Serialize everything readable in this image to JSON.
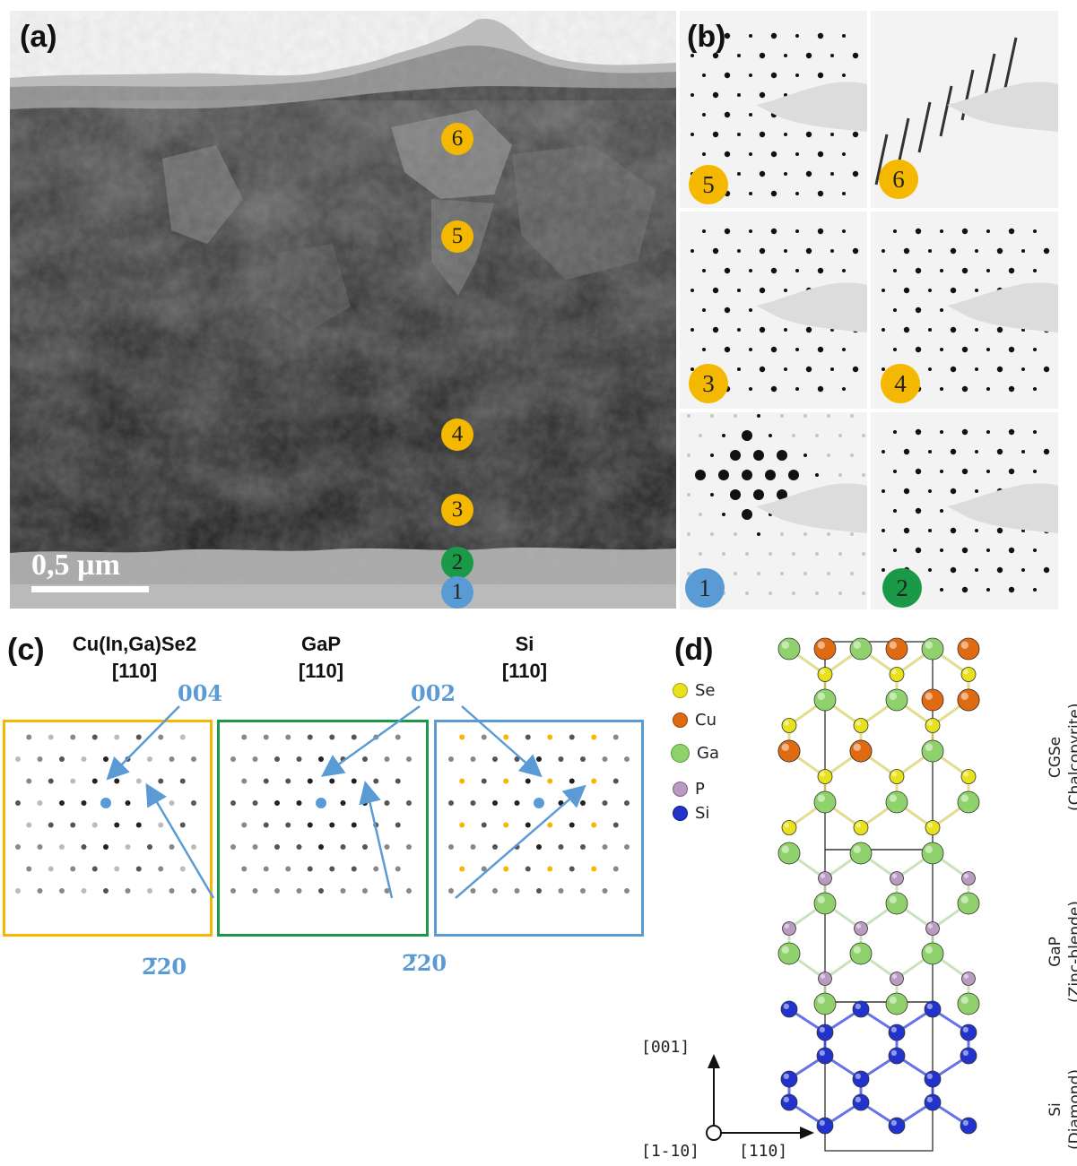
{
  "panel_a": {
    "label": "(a)",
    "scale_bar": "0,5 µm",
    "markers": [
      {
        "text": "6",
        "color": "#f5b800"
      },
      {
        "text": "5",
        "color": "#f5b800"
      },
      {
        "text": "4",
        "color": "#f5b800"
      },
      {
        "text": "3",
        "color": "#f5b800"
      },
      {
        "text": "2",
        "color": "#1a9a47"
      },
      {
        "text": "1",
        "color": "#5b9bd5"
      }
    ]
  },
  "panel_b": {
    "label": "(b)",
    "tiles": [
      {
        "text": "5",
        "color": "#f5b800"
      },
      {
        "text": "6",
        "color": "#f5b800"
      },
      {
        "text": "3",
        "color": "#f5b800"
      },
      {
        "text": "4",
        "color": "#f5b800"
      },
      {
        "text": "1",
        "color": "#5b9bd5"
      },
      {
        "text": "2",
        "color": "#1a9a47"
      }
    ]
  },
  "panel_c": {
    "label": "(c)",
    "columns": [
      {
        "material": "Cu(In,Ga)Se2",
        "zone_axis": "[110]",
        "frame_color": "#f5b800"
      },
      {
        "material": "GaP",
        "zone_axis": "[110]",
        "frame_color": "#1a9a47"
      },
      {
        "material": "Si",
        "zone_axis": "[110]",
        "frame_color": "#5b9bd5"
      }
    ],
    "labels": {
      "cigs_004": "004",
      "cigs_220": "2̅20",
      "shared_002": "002",
      "shared_220": "2̅20"
    },
    "arrow_color": "#5b9bd5",
    "forbidden_spot_color": "#f5b800"
  },
  "panel_d": {
    "label": "(d)",
    "legend": [
      {
        "name": "Se",
        "color": "#e8e21a"
      },
      {
        "name": "Cu",
        "color": "#e06a10"
      },
      {
        "name": "Ga",
        "color": "#8fd16a"
      },
      {
        "name": "P",
        "color": "#b99ac0"
      },
      {
        "name": "Si",
        "color": "#2233cc"
      }
    ],
    "layers": [
      {
        "name": "CGSe",
        "structure": "(Chalcopyrite)"
      },
      {
        "name": "GaP",
        "structure": "(Zinc-blende)"
      },
      {
        "name": "Si",
        "structure": "(Diamond)"
      }
    ],
    "axes": {
      "up": "[001]",
      "into": "[1-10]",
      "right": "[110]"
    }
  }
}
